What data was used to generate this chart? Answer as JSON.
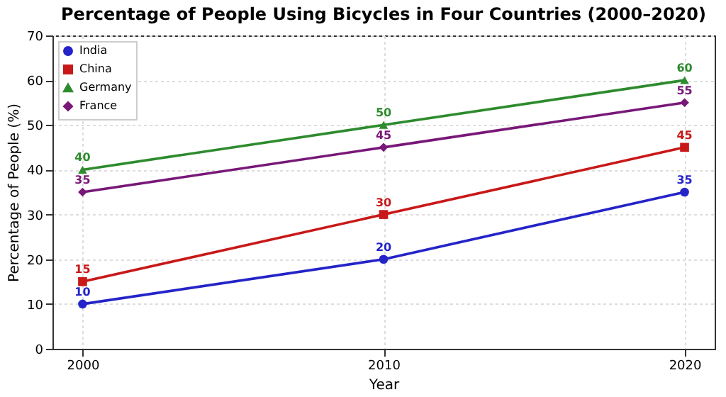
{
  "chart_data": {
    "type": "line",
    "title": "Percentage of People Using Bicycles in Four Countries (2000–2020)",
    "xlabel": "Year",
    "ylabel": "Percentage of People (%)",
    "x": [
      2000,
      2010,
      2020
    ],
    "xlim": [
      1999,
      2021
    ],
    "xticks": [
      2000,
      2010,
      2020
    ],
    "ylim": [
      0,
      70
    ],
    "yticks": [
      0,
      10,
      20,
      30,
      40,
      50,
      60,
      70
    ],
    "grid": true,
    "legend": "top left",
    "data_labels": true,
    "line_style": "solid",
    "series": [
      {
        "name": "India",
        "color": "#2424c8",
        "marker": "circle",
        "values": [
          10,
          20,
          35
        ]
      },
      {
        "name": "China",
        "color": "#c81818",
        "marker": "square",
        "values": [
          15,
          30,
          45
        ]
      },
      {
        "name": "Germany",
        "color": "#2e8b2e",
        "marker": "triangle",
        "values": [
          40,
          50,
          60
        ]
      },
      {
        "name": "France",
        "color": "#781878",
        "marker": "diamond",
        "values": [
          35,
          45,
          55
        ]
      }
    ]
  }
}
